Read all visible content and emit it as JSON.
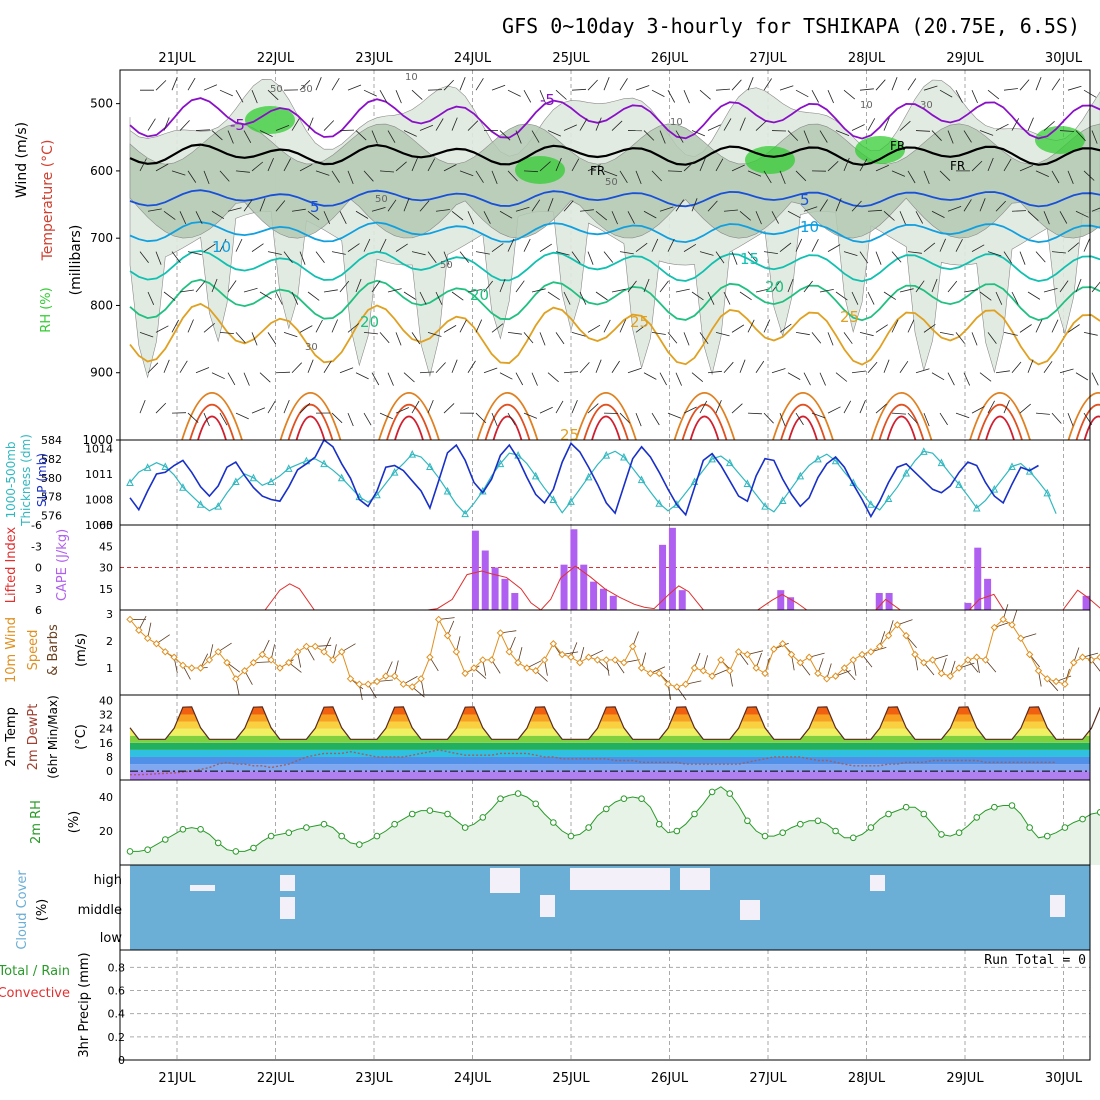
{
  "title": "GFS 0~10day 3-hourly for TSHIKAPA (20.75E, 6.5S)",
  "days": [
    "21JUL",
    "22JUL",
    "23JUL",
    "24JUL",
    "25JUL",
    "26JUL",
    "27JUL",
    "28JUL",
    "29JUL",
    "30JUL"
  ],
  "colors": {
    "temp": "#d04030",
    "wind": "#101010",
    "rh_green": "#33cc33",
    "rh_gray": "#7a9a7a",
    "thick": "#30b8c0",
    "slp": "#1830c8",
    "cape": "#b060f0",
    "li": "#e03030",
    "wind10": "#e09020",
    "cloud": "#6baed6",
    "rh2": "#2a9a2a",
    "precip_total": "#2a9a2a",
    "precip_conv": "#e03030"
  },
  "panels": {
    "upper": {
      "label_rh": "RH (%)",
      "label_temp": "Temperature (°C)",
      "label_wind": "Wind (m/s)",
      "label_pressure": "(millibars)",
      "yticks": [
        "500",
        "600",
        "700",
        "800",
        "900",
        "1000"
      ],
      "isotherm_labels": [
        "-5",
        "-5",
        "FR",
        "FR",
        "FR",
        "5",
        "5",
        "10",
        "10",
        "15",
        "20",
        "20",
        "20",
        "25",
        "25",
        "25"
      ],
      "rh_labels": [
        "50",
        "30",
        "50",
        "50",
        "30",
        "10",
        "10",
        "10",
        "30",
        "50"
      ]
    },
    "thickness": {
      "label_thick": "1000-500mb",
      "label_thick2": "Thickness (dm)",
      "label_slp": "SLP (mb)",
      "left_ticks": [
        "584",
        "582",
        "580",
        "578",
        "576"
      ],
      "right_ticks": [
        "1014",
        "1011",
        "1008",
        "1005"
      ]
    },
    "cape": {
      "label_li": "Lifted Index",
      "label_cape": "CAPE (J/kg)",
      "left_ticks": [
        "-6",
        "-3",
        "0",
        "3",
        "6"
      ],
      "right_ticks": [
        "60",
        "45",
        "30",
        "15"
      ]
    },
    "wind10": {
      "label1": "10m Wind",
      "label2": "Speed",
      "label3": "& Barbs",
      "unit": "(m/s)",
      "ticks": [
        "3",
        "2",
        "1"
      ]
    },
    "temp2m": {
      "label1": "2m Temp",
      "label2": "2m DewPt",
      "label3": "(6hr Min/Max)",
      "unit": "(°C)",
      "ticks": [
        "40",
        "32",
        "24",
        "16",
        "8",
        "0"
      ]
    },
    "rh2m": {
      "label": "2m RH",
      "unit": "(%)",
      "ticks": [
        "40",
        "20"
      ]
    },
    "cloud": {
      "label": "Cloud Cover",
      "unit": "(%)",
      "levels": [
        "high",
        "middle",
        "low"
      ]
    },
    "precip": {
      "label_total": "Total / Rain",
      "label_conv": "Convective",
      "label_unit": "3hr Precip (mm)",
      "run_total": "Run Total = 0",
      "ticks": [
        "0.8",
        "0.6",
        "0.4",
        "0.2",
        "0"
      ]
    }
  },
  "chart_data": [
    {
      "type": "line",
      "name": "upper-air cross-section",
      "x": [
        "21JUL",
        "22JUL",
        "23JUL",
        "24JUL",
        "25JUL",
        "26JUL",
        "27JUL",
        "28JUL",
        "29JUL",
        "30JUL"
      ],
      "ylabel": "(millibars)",
      "ylim": [
        1000,
        450
      ],
      "isotherms": [
        -5,
        0,
        5,
        10,
        15,
        20,
        25
      ]
    },
    {
      "type": "line",
      "name": "thickness/slp",
      "thickness_range": [
        575,
        584
      ],
      "slp_range": [
        1005,
        1015
      ],
      "thickness": [
        579.5,
        580.6,
        581.1,
        581.6,
        581.2,
        580.3,
        579.0,
        578.1,
        577.2,
        576.5,
        577.0,
        578.4,
        579.6,
        580.4,
        580.0,
        579.2,
        579.6,
        580.2,
        581.0,
        581.4,
        581.8,
        582.0,
        581.5,
        580.8,
        580.0,
        579.0,
        578.0,
        577.4,
        578.2,
        579.4,
        580.6,
        581.5,
        582.5,
        582.2,
        581.2,
        580.0,
        578.6,
        577.2,
        576.2,
        577.3,
        578.6,
        580.2,
        581.5,
        582.6,
        582.4,
        581.5,
        580.2,
        578.9,
        577.7,
        576.3,
        577.5,
        578.8,
        580.1,
        581.4,
        582.4,
        582.8,
        582.2,
        581.0,
        579.8,
        578.5,
        577.3,
        576.5,
        577.2,
        578.4,
        579.6,
        580.8,
        582.0,
        582.3,
        581.6,
        580.5,
        579.4,
        578.2,
        577.0,
        576.4,
        577.6,
        578.9,
        580.2,
        581.3,
        582.0,
        582.5,
        581.8,
        580.6,
        579.5,
        578.4,
        577.2,
        576.6,
        577.8,
        579.0,
        580.5,
        581.8,
        582.8,
        582.6,
        581.6,
        580.4,
        579.3,
        578.1,
        576.8,
        577.6,
        578.8,
        580.0,
        581.2,
        581.5,
        580.7,
        579.6,
        578.4,
        576.2
      ],
      "slp": [
        1008.2,
        1006.8,
        1009.0,
        1011.0,
        1011.2,
        1012.0,
        1012.6,
        1011.2,
        1009.5,
        1008.4,
        1009.6,
        1011.8,
        1012.4,
        1010.8,
        1009.4,
        1008.4,
        1008.0,
        1007.8,
        1009.5,
        1011.5,
        1012.2,
        1013.0,
        1015.0,
        1014.2,
        1012.2,
        1010.5,
        1008.0,
        1007.2,
        1009.0,
        1011.8,
        1012.0,
        1011.4,
        1010.2,
        1009.0,
        1007.0,
        1010.2,
        1013.5,
        1014.4,
        1012.6,
        1010.0,
        1008.8,
        1010.4,
        1013.2,
        1014.4,
        1012.8,
        1010.6,
        1008.6,
        1007.6,
        1009.2,
        1012.4,
        1014.6,
        1013.6,
        1011.8,
        1009.8,
        1007.6,
        1006.4,
        1009.6,
        1012.8,
        1014.2,
        1013.0,
        1011.2,
        1009.2,
        1007.4,
        1006.2,
        1009.4,
        1012.6,
        1013.4,
        1012.0,
        1010.2,
        1008.4,
        1007.8,
        1010.8,
        1012.8,
        1012.6,
        1010.4,
        1008.6,
        1007.2,
        1008.2,
        1010.6,
        1012.2,
        1013.0,
        1011.8,
        1009.8,
        1008.0,
        1006.0,
        1007.8,
        1010.0,
        1011.8,
        1012.2,
        1011.2,
        1010.2,
        1009.2,
        1008.8,
        1009.6,
        1011.2,
        1012.4,
        1012.0,
        1010.0,
        1008.4,
        1007.6,
        1009.8,
        1011.8,
        1011.4,
        1012.0
      ]
    },
    {
      "type": "bar",
      "name": "cape/lifted-index",
      "cape_range": [
        0,
        60
      ],
      "li_range": [
        6,
        -6
      ],
      "cape_bars": [
        [
          24.4,
          56
        ],
        [
          24.5,
          42
        ],
        [
          24.6,
          30
        ],
        [
          24.7,
          22
        ],
        [
          24.8,
          12
        ],
        [
          25.3,
          32
        ],
        [
          25.4,
          57
        ],
        [
          25.5,
          32
        ],
        [
          25.6,
          20
        ],
        [
          25.7,
          15
        ],
        [
          25.8,
          10
        ],
        [
          26.3,
          46
        ],
        [
          26.4,
          58
        ],
        [
          26.5,
          14
        ],
        [
          27.5,
          14
        ],
        [
          27.6,
          9
        ],
        [
          28.5,
          12
        ],
        [
          28.6,
          12
        ],
        [
          29.4,
          5
        ],
        [
          29.5,
          44
        ],
        [
          29.6,
          22
        ],
        [
          30.6,
          10
        ]
      ],
      "li": [
        [
          22.3,
          6
        ],
        [
          22.45,
          3.2
        ],
        [
          22.55,
          2.3
        ],
        [
          22.65,
          3.0
        ],
        [
          22.8,
          6
        ],
        [
          23.95,
          6
        ],
        [
          24.05,
          5.8
        ],
        [
          24.2,
          4.5
        ],
        [
          24.35,
          1.0
        ],
        [
          24.5,
          0.5
        ],
        [
          24.6,
          0.9
        ],
        [
          24.75,
          1.4
        ],
        [
          24.9,
          3.0
        ],
        [
          25.0,
          5.0
        ],
        [
          25.1,
          6
        ],
        [
          25.2,
          4.5
        ],
        [
          25.3,
          1.5
        ],
        [
          25.45,
          -0.2
        ],
        [
          25.6,
          1.3
        ],
        [
          25.75,
          3.0
        ],
        [
          25.9,
          4.2
        ],
        [
          26.05,
          5.2
        ],
        [
          26.15,
          5.6
        ],
        [
          26.25,
          5.8
        ],
        [
          26.4,
          3.8
        ],
        [
          26.5,
          2.6
        ],
        [
          26.6,
          3.4
        ],
        [
          26.75,
          6
        ],
        [
          27.3,
          6
        ],
        [
          27.45,
          4.6
        ],
        [
          27.55,
          3.8
        ],
        [
          27.7,
          5.0
        ],
        [
          27.8,
          6
        ],
        [
          28.5,
          6
        ],
        [
          28.6,
          4.5
        ],
        [
          28.75,
          6
        ],
        [
          29.45,
          6
        ],
        [
          29.55,
          4.5
        ],
        [
          29.7,
          3.8
        ],
        [
          29.8,
          6
        ],
        [
          30.4,
          6
        ],
        [
          30.55,
          3.2
        ],
        [
          30.65,
          4.2
        ],
        [
          30.8,
          6
        ]
      ]
    },
    {
      "type": "line",
      "name": "10m wind speed",
      "ylim": [
        0,
        3
      ],
      "values": [
        2.8,
        2.4,
        2.1,
        1.9,
        1.6,
        1.4,
        1.1,
        1.0,
        1.0,
        1.3,
        1.6,
        1.2,
        0.6,
        0.9,
        1.2,
        1.5,
        1.3,
        1.0,
        1.2,
        1.6,
        1.8,
        1.8,
        1.6,
        1.3,
        1.6,
        0.6,
        0.4,
        0.4,
        0.5,
        0.7,
        0.7,
        0.4,
        0.3,
        0.6,
        1.4,
        2.8,
        2.2,
        1.6,
        0.8,
        1.0,
        1.3,
        1.3,
        2.3,
        1.6,
        1.2,
        1.0,
        0.9,
        1.3,
        1.9,
        1.5,
        1.4,
        1.2,
        1.4,
        1.3,
        1.3,
        1.3,
        1.2,
        1.8,
        1.0,
        0.8,
        0.8,
        0.4,
        0.3,
        0.4,
        1.0,
        0.9,
        0.7,
        1.3,
        0.9,
        1.6,
        1.5,
        1.0,
        0.8,
        1.7,
        1.9,
        1.5,
        1.2,
        1.4,
        0.8,
        0.6,
        0.7,
        1.0,
        1.3,
        1.5,
        1.6,
        1.8,
        2.2,
        2.6,
        2.2,
        1.5,
        1.2,
        1.3,
        0.8,
        0.7,
        1.0,
        1.3,
        1.4,
        1.3,
        2.5,
        2.8,
        2.6,
        2.1,
        1.5,
        0.9,
        0.6,
        0.5,
        0.4,
        1.2,
        1.4,
        1.3,
        1.4,
        1.5
      ]
    },
    {
      "type": "area",
      "name": "2m temp/dewpoint",
      "ylim": [
        -5,
        43
      ],
      "temp_min": 18,
      "temp_max": 38,
      "dew": [
        -2,
        -2,
        -1.8,
        -1.5,
        -1.2,
        -1,
        -0.5,
        0,
        1,
        2,
        4,
        5,
        4,
        4,
        3,
        3,
        2,
        3,
        4,
        6,
        8,
        9,
        10,
        10,
        10,
        11,
        10,
        9,
        8,
        8,
        8,
        8,
        9,
        10,
        11,
        12,
        11,
        10,
        9,
        9,
        9,
        9,
        10,
        10,
        10,
        10,
        9,
        8,
        8,
        7,
        7,
        7,
        7,
        7,
        7,
        6,
        6,
        6,
        5,
        5,
        5,
        5,
        5,
        4,
        4,
        4,
        4,
        4,
        4,
        4,
        5,
        6,
        7,
        8,
        8,
        8,
        8,
        7,
        6,
        6,
        5,
        4,
        3,
        3,
        3,
        3,
        4,
        4,
        5,
        5,
        5,
        6,
        6,
        6,
        6,
        6,
        6,
        5,
        5,
        5,
        5,
        5,
        5,
        5,
        5,
        5
      ]
    },
    {
      "type": "area",
      "name": "2m relative humidity",
      "ylim": [
        0,
        50
      ],
      "values": [
        8,
        8,
        9,
        12,
        15,
        18,
        21,
        22,
        21,
        18,
        13,
        9,
        8,
        8,
        10,
        14,
        17,
        18,
        19,
        21,
        22,
        23,
        24,
        22,
        17,
        13,
        12,
        14,
        17,
        20,
        24,
        27,
        30,
        32,
        32,
        31,
        30,
        26,
        22,
        24,
        28,
        33,
        39,
        41,
        42,
        40,
        36,
        30,
        25,
        20,
        17,
        18,
        22,
        29,
        33,
        37,
        39,
        40,
        39,
        34,
        24,
        19,
        20,
        24,
        30,
        36,
        43,
        46,
        42,
        35,
        26,
        20,
        17,
        17,
        19,
        22,
        24,
        26,
        26,
        24,
        20,
        16,
        16,
        18,
        22,
        27,
        30,
        32,
        34,
        34,
        30,
        24,
        18,
        17,
        19,
        23,
        28,
        32,
        34,
        35,
        35,
        30,
        22,
        16,
        17,
        19,
        22,
        25,
        27,
        30,
        31,
        27
      ]
    },
    {
      "type": "heatmap",
      "name": "cloud cover",
      "layers": [
        "high",
        "middle",
        "low"
      ]
    },
    {
      "type": "bar",
      "name": "3hr precip",
      "ylim": [
        0,
        1
      ],
      "values": []
    }
  ]
}
